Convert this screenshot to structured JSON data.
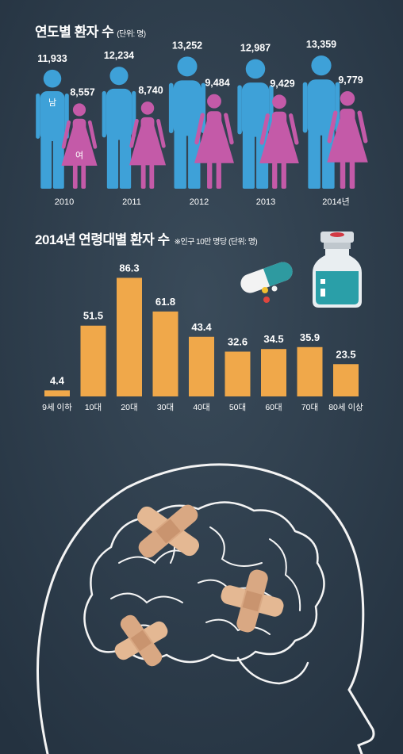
{
  "chart_data": [
    {
      "type": "bar",
      "title": "연도별 환자 수",
      "unit_note": "(단위: 명)",
      "categories": [
        "2010",
        "2011",
        "2012",
        "2013",
        "2014년"
      ],
      "series": [
        {
          "name": "남",
          "color": "#3ea1d8",
          "values": [
            11933,
            12234,
            13252,
            12987,
            13359
          ],
          "labels": [
            "11,933",
            "12,234",
            "13,252",
            "12,987",
            "13,359"
          ]
        },
        {
          "name": "여",
          "color": "#c45aa8",
          "values": [
            8557,
            8740,
            9484,
            9429,
            9779
          ],
          "labels": [
            "8,557",
            "8,740",
            "9,484",
            "9,429",
            "9,779"
          ]
        }
      ]
    },
    {
      "type": "bar",
      "title": "2014년 연령대별 환자 수",
      "unit_note": "※인구 10만 명당 (단위: 명)",
      "categories": [
        "9세 이하",
        "10대",
        "20대",
        "30대",
        "40대",
        "50대",
        "60대",
        "70대",
        "80세 이상"
      ],
      "values": [
        4.4,
        51.5,
        86.3,
        61.8,
        43.4,
        32.6,
        34.5,
        35.9,
        23.5
      ],
      "color": "#f0a84a",
      "ylim": [
        0,
        90
      ]
    }
  ],
  "icons": [
    "male-figure-icon",
    "female-figure-icon",
    "pill-capsule-icon",
    "medicine-vial-icon",
    "brain-head-outline-icon",
    "bandage-icon"
  ]
}
